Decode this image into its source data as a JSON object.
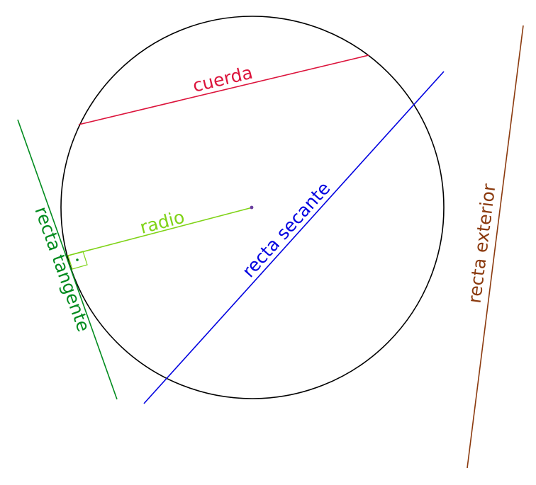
{
  "labels": {
    "chord": "cuerda",
    "radius": "radio",
    "secant": "recta secante",
    "tangent": "recta tangente",
    "exterior": "recta exterior"
  },
  "colors": {
    "circle": "#000000",
    "chord": "#dc143c",
    "radius": "#7fd317",
    "secant": "#0000e0",
    "tangent": "#008b1e",
    "exterior": "#8b3a0e",
    "center_point": "#6b3fa0"
  }
}
